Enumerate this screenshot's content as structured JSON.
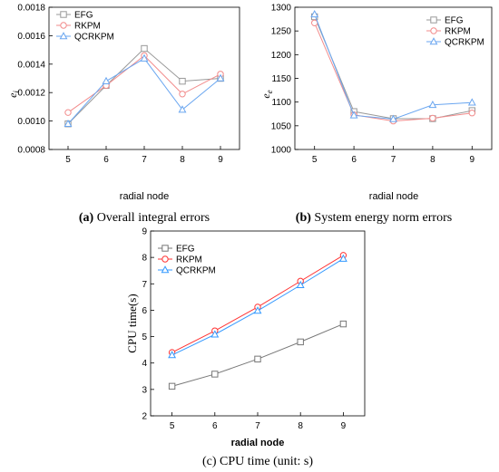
{
  "chart_data": [
    {
      "type": "line",
      "caption_letter": "(a)",
      "caption_text": " Overall integral errors",
      "ylabel_main": "e",
      "ylabel_sub": "i",
      "xlabel": "radial node",
      "x": [
        5,
        6,
        7,
        8,
        9
      ],
      "xlim": [
        4.5,
        9.5
      ],
      "ylim": [
        0.0008,
        0.0018
      ],
      "yticks": [
        "0.0008",
        "0.0010",
        "0.0012",
        "0.0014",
        "0.0016",
        "0.0018"
      ],
      "legend_position": "top-left",
      "series": [
        {
          "name": "EFG",
          "marker": "square",
          "color": "#999999",
          "values": [
            0.00098,
            0.00125,
            0.00151,
            0.00128,
            0.0013
          ]
        },
        {
          "name": "RKPM",
          "marker": "circle",
          "color": "#f28b8b",
          "values": [
            0.00106,
            0.00125,
            0.00146,
            0.00119,
            0.00133
          ]
        },
        {
          "name": "QCRKPM",
          "marker": "triangle",
          "color": "#6aa6f0",
          "values": [
            0.00098,
            0.00128,
            0.00144,
            0.00108,
            0.0013
          ]
        }
      ]
    },
    {
      "type": "line",
      "caption_letter": "(b)",
      "caption_text": " System energy norm errors",
      "ylabel_main": "e",
      "ylabel_sub": "e",
      "xlabel": "radial node",
      "x": [
        5,
        6,
        7,
        8,
        9
      ],
      "xlim": [
        4.5,
        9.5
      ],
      "ylim": [
        1000,
        1300
      ],
      "yticks": [
        "1000",
        "1050",
        "1100",
        "1150",
        "1200",
        "1250",
        "1300"
      ],
      "legend_position": "top-right",
      "series": [
        {
          "name": "EFG",
          "marker": "square",
          "color": "#999999",
          "values": [
            1280,
            1080,
            1065,
            1065,
            1082
          ]
        },
        {
          "name": "RKPM",
          "marker": "circle",
          "color": "#f28b8b",
          "values": [
            1267,
            1073,
            1060,
            1066,
            1077
          ]
        },
        {
          "name": "QCRKPM",
          "marker": "triangle",
          "color": "#6aa6f0",
          "values": [
            1285,
            1072,
            1064,
            1094,
            1099
          ]
        }
      ]
    },
    {
      "type": "line",
      "caption_letter": "",
      "caption_text": "(c) CPU time (unit: s)",
      "ylabel": "CPU time(s)",
      "xlabel": "radial node",
      "x": [
        5,
        6,
        7,
        8,
        9
      ],
      "xlim": [
        4.5,
        9.5
      ],
      "ylim": [
        2,
        9
      ],
      "yticks": [
        "2",
        "3",
        "4",
        "5",
        "6",
        "7",
        "8",
        "9"
      ],
      "legend_position": "top-left",
      "series": [
        {
          "name": "EFG",
          "marker": "square",
          "color": "#777777",
          "values": [
            3.12,
            3.58,
            4.15,
            4.8,
            5.48
          ]
        },
        {
          "name": "RKPM",
          "marker": "circle",
          "color": "#ff3333",
          "values": [
            4.4,
            5.22,
            6.12,
            7.1,
            8.08
          ]
        },
        {
          "name": "QCRKPM",
          "marker": "triangle",
          "color": "#3399ff",
          "values": [
            4.3,
            5.08,
            5.98,
            6.95,
            7.95
          ]
        }
      ]
    }
  ]
}
